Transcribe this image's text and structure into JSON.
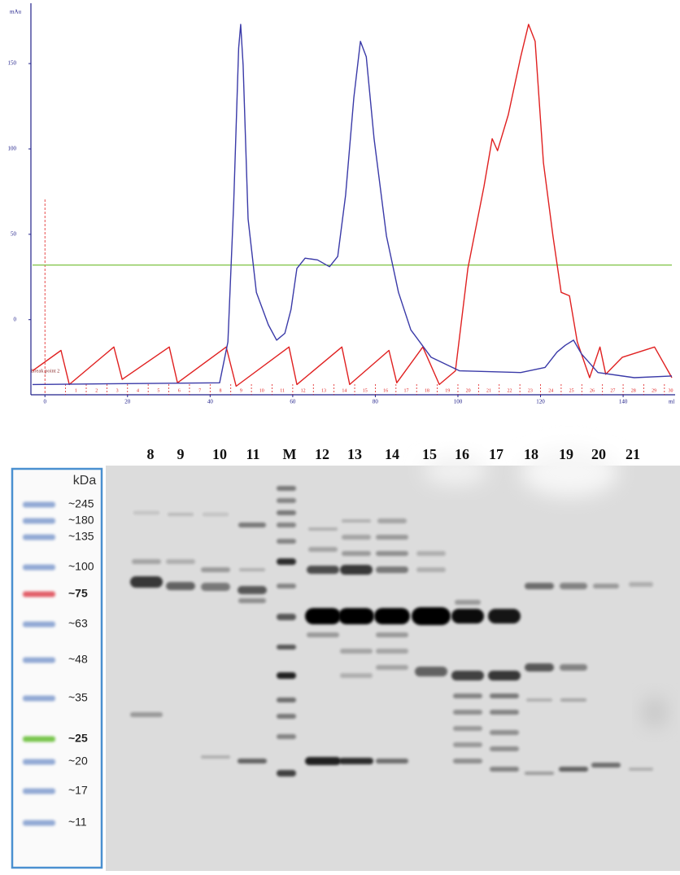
{
  "chart_data": {
    "type": "line",
    "ylabel": "mAu",
    "xlabel": "ml",
    "xlim": [
      -3,
      152
    ],
    "ylim": [
      -44,
      182
    ],
    "xticks": [
      0,
      20,
      40,
      60,
      80,
      100,
      120,
      140
    ],
    "yticks": [
      0,
      50,
      100,
      150
    ],
    "axis_color": "#20208a",
    "series": [
      {
        "color": "#3a3aa8",
        "x": [
          -3,
          42.3,
          44.3,
          45.7,
          46.9,
          47.4,
          48,
          49.2,
          51.2,
          54.1,
          56.1,
          58.1,
          59.6,
          61,
          63,
          66,
          68.9,
          70.9,
          72.8,
          74.8,
          76.4,
          77.8,
          79.7,
          82.7,
          85.6,
          88.6,
          93.5,
          100.4,
          115.2,
          121.1,
          124,
          126,
          128,
          129.9,
          133.9,
          142.7,
          151.8
        ],
        "values": [
          -38,
          -37,
          -13,
          68,
          159,
          173,
          149,
          59,
          16,
          -3,
          -12,
          -8,
          6,
          30,
          36,
          35,
          31,
          37,
          73,
          130,
          163,
          154,
          106,
          49,
          16,
          -6,
          -22,
          -30,
          -31,
          -28,
          -19,
          -15,
          -12,
          -20,
          -31,
          -34,
          -33
        ]
      },
      {
        "color": "#e02020",
        "x": [
          -3,
          3.9,
          5.9,
          16.7,
          18.7,
          30.1,
          32.1,
          43.9,
          46.3,
          59.1,
          61,
          71.9,
          73.8,
          83.3,
          85.2,
          91.5,
          95.5,
          99.4,
          102.4,
          106.3,
          108.3,
          109.6,
          112.2,
          115.2,
          117.1,
          118.7,
          120.7,
          123,
          125,
          127,
          128.9,
          131.9,
          134.4,
          135.8,
          139.8,
          147.6,
          151.8
        ],
        "values": [
          -30,
          -18,
          -38,
          -16,
          -35,
          -16,
          -37,
          -16,
          -39,
          -16,
          -38,
          -16,
          -38,
          -18,
          -37,
          -16,
          -38,
          -30,
          30,
          78,
          106,
          99,
          120,
          154,
          173,
          163,
          92,
          49,
          16,
          14,
          -13,
          -34,
          -16,
          -32,
          -22,
          -16,
          -34
        ]
      }
    ],
    "hline": {
      "value": 32,
      "color": "#7dc242"
    },
    "break_point": {
      "label": "Break point 2",
      "x": 0
    },
    "fractions": {
      "color": "#e02020",
      "labels": [
        "1",
        "2",
        "3",
        "4",
        "5",
        "6",
        "7",
        "8",
        "9",
        "10",
        "11",
        "12",
        "13",
        "14",
        "15",
        "16",
        "17",
        "18",
        "19",
        "20",
        "21",
        "22",
        "23",
        "24",
        "25",
        "26",
        "27",
        "28",
        "29",
        "30"
      ],
      "edges": [
        5,
        10,
        15,
        20,
        25,
        30,
        35,
        40,
        45,
        50,
        55,
        60,
        65,
        70,
        75,
        80,
        85,
        90,
        95,
        100,
        105,
        110,
        115,
        120,
        125,
        130,
        135,
        140,
        145,
        150
      ]
    }
  },
  "gel": {
    "lanes": [
      "8",
      "9",
      "10",
      "11",
      "M",
      "12",
      "13",
      "14",
      "15",
      "16",
      "17",
      "18",
      "19",
      "20",
      "21"
    ],
    "unit": "kDa",
    "markers": [
      "~245",
      "~180",
      "~135",
      "~100",
      "~75",
      "~63",
      "~48",
      "~35",
      "~25",
      "~20",
      "~17",
      "~11"
    ]
  }
}
